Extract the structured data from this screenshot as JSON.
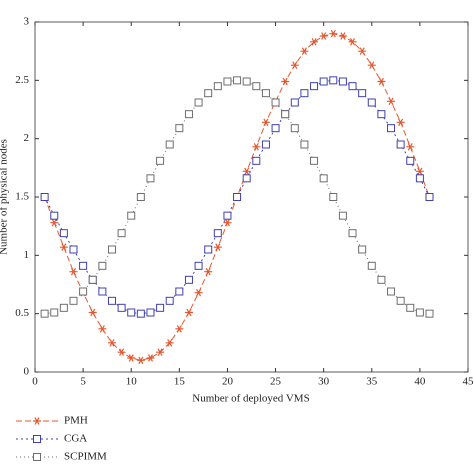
{
  "chart_data": {
    "type": "line",
    "xlabel": "Number of deployed VMS",
    "ylabel": "Number of physical nodes",
    "x": [
      1,
      2,
      3,
      4,
      5,
      6,
      7,
      8,
      9,
      10,
      11,
      12,
      13,
      14,
      15,
      16,
      17,
      18,
      19,
      20,
      21,
      22,
      23,
      24,
      25,
      26,
      27,
      28,
      29,
      30,
      31,
      32,
      33,
      34,
      35,
      36,
      37,
      38,
      39,
      40,
      41
    ],
    "series": [
      {
        "name": "PMH",
        "color": "#e4572e",
        "marker": "star",
        "dash": "6,3",
        "values": [
          1.5,
          1.28,
          1.07,
          0.86,
          0.68,
          0.51,
          0.37,
          0.25,
          0.17,
          0.12,
          0.1,
          0.12,
          0.17,
          0.25,
          0.37,
          0.51,
          0.68,
          0.86,
          1.07,
          1.28,
          1.5,
          1.72,
          1.93,
          2.14,
          2.32,
          2.49,
          2.63,
          2.75,
          2.83,
          2.88,
          2.9,
          2.88,
          2.83,
          2.75,
          2.63,
          2.49,
          2.32,
          2.14,
          1.93,
          1.72,
          1.5
        ]
      },
      {
        "name": "CGA",
        "color": "#4040b0",
        "marker": "square",
        "dash": "2,3",
        "values": [
          1.5,
          1.34,
          1.19,
          1.05,
          0.91,
          0.79,
          0.69,
          0.61,
          0.55,
          0.51,
          0.5,
          0.51,
          0.55,
          0.61,
          0.69,
          0.79,
          0.91,
          1.05,
          1.19,
          1.34,
          1.5,
          1.66,
          1.81,
          1.95,
          2.09,
          2.21,
          2.31,
          2.39,
          2.45,
          2.49,
          2.5,
          2.49,
          2.45,
          2.39,
          2.31,
          2.21,
          2.09,
          1.95,
          1.81,
          1.66,
          1.5
        ]
      },
      {
        "name": "SCPIMM",
        "color": "#6e6e6e",
        "marker": "square",
        "dash": "1,3",
        "values": [
          0.5,
          0.51,
          0.55,
          0.61,
          0.69,
          0.79,
          0.91,
          1.05,
          1.19,
          1.34,
          1.5,
          1.66,
          1.81,
          1.95,
          2.09,
          2.21,
          2.31,
          2.39,
          2.45,
          2.49,
          2.5,
          2.49,
          2.45,
          2.39,
          2.31,
          2.21,
          2.09,
          1.95,
          1.81,
          1.66,
          1.5,
          1.34,
          1.19,
          1.05,
          0.91,
          0.79,
          0.69,
          0.61,
          0.55,
          0.51,
          0.5
        ]
      }
    ],
    "xlim": [
      0,
      45
    ],
    "xticks": [
      0,
      5,
      10,
      15,
      20,
      25,
      30,
      35,
      40,
      45
    ],
    "ylim": [
      0,
      3
    ],
    "yticks": [
      0,
      0.5,
      1,
      1.5,
      2,
      2.5,
      3
    ],
    "grid": false,
    "legend": "bottom-left"
  }
}
